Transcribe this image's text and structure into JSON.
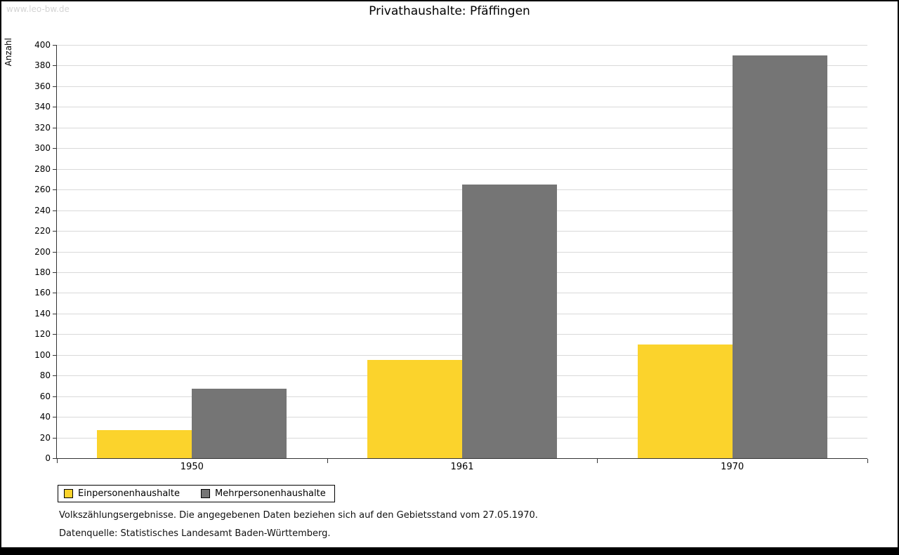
{
  "watermark": "www.leo-bw.de",
  "title": "Privathaushalte: Pfäffingen",
  "chart_data": {
    "type": "bar",
    "title": "Privathaushalte: Pfäffingen",
    "categories": [
      "1950",
      "1961",
      "1970"
    ],
    "series": [
      {
        "name": "Einpersonenhaushalte",
        "color": "#fbd32c",
        "values": [
          27,
          95,
          110
        ]
      },
      {
        "name": "Mehrpersonenhaushalte",
        "color": "#757575",
        "values": [
          67,
          265,
          390
        ]
      }
    ],
    "xlabel": "",
    "ylabel": "Anzahl",
    "ylim": [
      0,
      400
    ],
    "ytick_step": 20,
    "grid": true,
    "legend_position": "bottom-left"
  },
  "footnotes": [
    "Volkszählungsergebnisse. Die angegebenen Daten beziehen sich auf den Gebietsstand vom 27.05.1970.",
    "Datenquelle: Statistisches Landesamt Baden-Württemberg."
  ]
}
